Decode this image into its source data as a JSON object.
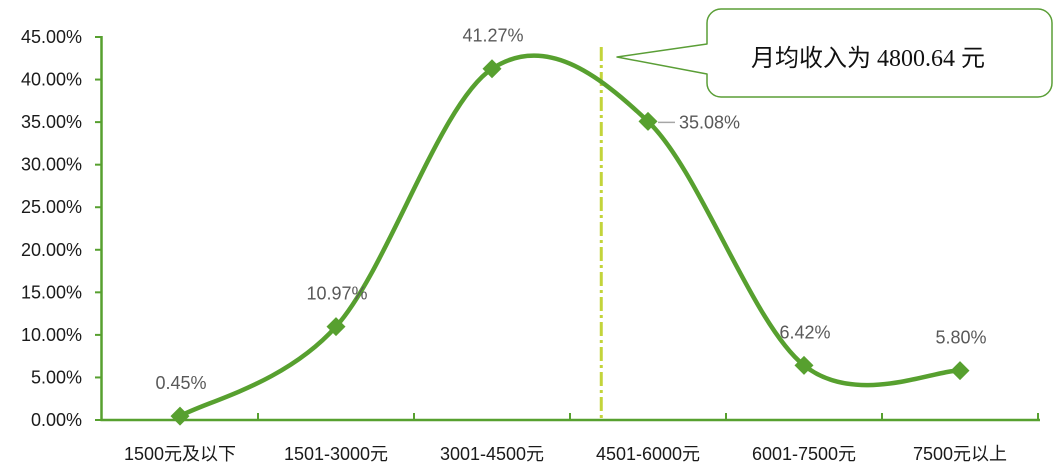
{
  "chart_data": {
    "type": "line",
    "smooth": true,
    "marker": "diamond",
    "grid": false,
    "categories": [
      "1500元及以下",
      "1501-3000元",
      "3001-4500元",
      "4501-6000元",
      "6001-7500元",
      "7500元以上"
    ],
    "series": [
      {
        "values": [
          0.45,
          10.97,
          41.27,
          35.08,
          6.42,
          5.8
        ],
        "labels": [
          "0.45%",
          "10.97%",
          "41.27%",
          "35.08%",
          "6.42%",
          "5.80%"
        ]
      }
    ],
    "ylim": [
      0,
      45
    ],
    "y_ticks": [
      "0.00%",
      "5.00%",
      "10.00%",
      "15.00%",
      "20.00%",
      "25.00%",
      "30.00%",
      "35.00%",
      "40.00%",
      "45.00%"
    ],
    "reference_line": {
      "value": 4800.64,
      "line_style": "dash-dot"
    },
    "annotation": {
      "text": "月均收入为 4800.64 元"
    },
    "colors": {
      "line": "#57a02f",
      "axis": "#57a02f",
      "reference_line": "#c3d43a",
      "callout_border": "#5a9e36",
      "leader_line": "#a6a6a6"
    }
  }
}
